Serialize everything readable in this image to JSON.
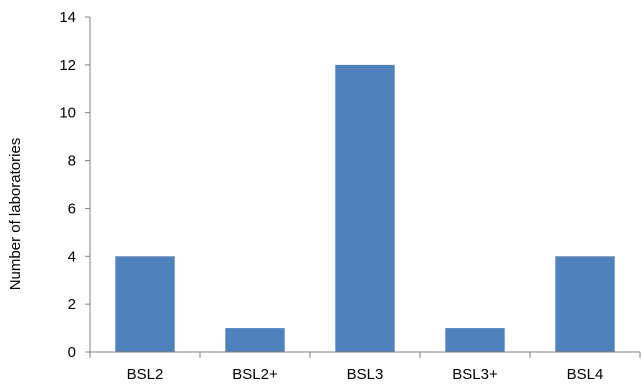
{
  "chart_data": {
    "type": "bar",
    "title": "",
    "xlabel": "",
    "ylabel": "Number of laboratories",
    "categories": [
      "BSL2",
      "BSL2+",
      "BSL3",
      "BSL3+",
      "BSL4"
    ],
    "values": [
      4,
      1,
      12,
      1,
      4
    ],
    "ylim": [
      0,
      14
    ],
    "yticks": [
      0,
      2,
      4,
      6,
      8,
      10,
      12,
      14
    ],
    "grid": false,
    "legend": "none",
    "bar_color": "#4F81BD",
    "axis_color": "#808080"
  }
}
